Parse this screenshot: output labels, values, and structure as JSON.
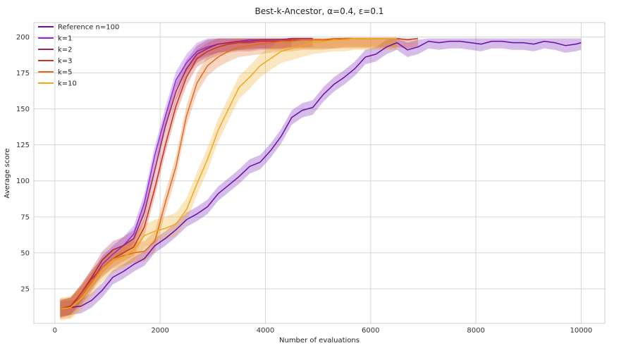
{
  "chart_data": {
    "type": "line",
    "title": "Best-k-Ancestor, α=0.4, ε=0.1",
    "xlabel": "Number of evaluations",
    "ylabel": "Average score",
    "xlim": [
      -400,
      10450
    ],
    "ylim": [
      1,
      210
    ],
    "xticks": [
      0,
      2000,
      4000,
      6000,
      8000,
      10000
    ],
    "yticks": [
      25,
      50,
      75,
      100,
      125,
      150,
      175,
      200
    ],
    "grid": true,
    "legend_position": "top-left",
    "series": [
      {
        "name": "Reference n=100",
        "color": "#6a0dad",
        "band": 5,
        "x": [
          100,
          300,
          500,
          700,
          900,
          1100,
          1300,
          1500,
          1700,
          1900,
          2100,
          2300,
          2500,
          2700,
          2900,
          3100,
          3300,
          3500,
          3700,
          3900,
          4100,
          4300,
          4500,
          4700,
          4900,
          5100,
          5300,
          5500,
          5700,
          5900,
          6100,
          6300,
          6500,
          6700,
          6900,
          7100,
          7300,
          7500,
          7700,
          7900,
          8100,
          8300,
          8500,
          8700,
          8900,
          9100,
          9300,
          9500,
          9700,
          9900,
          10000
        ],
        "y": [
          11,
          12,
          13,
          17,
          24,
          33,
          37,
          42,
          46,
          55,
          60,
          66,
          73,
          77,
          82,
          91,
          97,
          103,
          110,
          113,
          121,
          131,
          144,
          149,
          151,
          160,
          167,
          172,
          178,
          186,
          188,
          193,
          196,
          191,
          193,
          197,
          196,
          197,
          197,
          196,
          195,
          197,
          197,
          196,
          196,
          195,
          197,
          196,
          194,
          195,
          196
        ]
      },
      {
        "name": "k=1",
        "color": "#8a2be2",
        "band": 6,
        "x": [
          100,
          300,
          500,
          700,
          900,
          1100,
          1300,
          1500,
          1700,
          1900,
          2100,
          2300,
          2500,
          2700,
          2900,
          3100,
          3300,
          3500,
          3700,
          3900,
          4100,
          4300,
          4500
        ],
        "y": [
          11,
          13,
          20,
          30,
          42,
          49,
          55,
          63,
          85,
          118,
          145,
          170,
          182,
          190,
          193,
          195,
          196,
          197,
          198,
          198,
          198,
          198,
          199
        ]
      },
      {
        "name": "k=2",
        "color": "#a0205a",
        "band": 6,
        "x": [
          100,
          300,
          500,
          700,
          900,
          1100,
          1300,
          1500,
          1700,
          1900,
          2100,
          2300,
          2500,
          2700,
          2900,
          3100,
          3300,
          3500,
          3700,
          3900,
          4100,
          4300,
          4500,
          4700,
          4900
        ],
        "y": [
          11,
          13,
          22,
          33,
          45,
          52,
          55,
          60,
          78,
          108,
          138,
          162,
          178,
          188,
          192,
          195,
          196,
          197,
          197,
          198,
          198,
          198,
          199,
          199,
          199
        ]
      },
      {
        "name": "k=3",
        "color": "#c8321e",
        "band": 6,
        "x": [
          100,
          300,
          500,
          700,
          900,
          1100,
          1300,
          1500,
          1700,
          1900,
          2100,
          2300,
          2500,
          2700,
          2900,
          3100,
          3300,
          3500,
          3700,
          3900,
          4100,
          4300,
          4500,
          4700,
          4900,
          5100,
          5300,
          5500,
          5700,
          5900,
          6100,
          6300,
          6500,
          6700,
          6900
        ],
        "y": [
          11,
          13,
          22,
          32,
          40,
          46,
          50,
          54,
          68,
          95,
          125,
          152,
          172,
          185,
          190,
          193,
          195,
          196,
          196,
          197,
          197,
          197,
          198,
          198,
          198,
          198,
          198,
          199,
          199,
          199,
          199,
          199,
          199,
          198,
          199
        ]
      },
      {
        "name": "k=5",
        "color": "#e06c1c",
        "band": 7,
        "x": [
          100,
          300,
          500,
          700,
          900,
          1100,
          1300,
          1500,
          1700,
          1900,
          2100,
          2300,
          2500,
          2700,
          2900,
          3100,
          3300,
          3500,
          3700,
          3900,
          4100,
          4300,
          4500,
          4700,
          4900,
          5100,
          5300,
          5500,
          5700,
          5900,
          6100,
          6300,
          6500
        ],
        "y": [
          11,
          12,
          20,
          30,
          40,
          46,
          48,
          50,
          51,
          58,
          85,
          110,
          145,
          168,
          180,
          186,
          190,
          193,
          194,
          195,
          196,
          197,
          197,
          198,
          198,
          198,
          199,
          199,
          199,
          199,
          199,
          199,
          199
        ]
      },
      {
        "name": "k=10",
        "color": "#f0a818",
        "band": 8,
        "x": [
          100,
          300,
          500,
          700,
          900,
          1100,
          1300,
          1500,
          1700,
          1900,
          2100,
          2300,
          2500,
          2700,
          2900,
          3100,
          3300,
          3500,
          3700,
          3900,
          4100,
          4300,
          4500,
          4700,
          4900,
          5100,
          5300,
          5500,
          5700,
          5900,
          6100,
          6300,
          6500
        ],
        "y": [
          11,
          12,
          18,
          28,
          38,
          44,
          47,
          52,
          62,
          65,
          67,
          70,
          80,
          98,
          115,
          135,
          150,
          165,
          172,
          180,
          185,
          190,
          192,
          194,
          196,
          197,
          198,
          198,
          199,
          199,
          199,
          199,
          199
        ]
      }
    ]
  }
}
